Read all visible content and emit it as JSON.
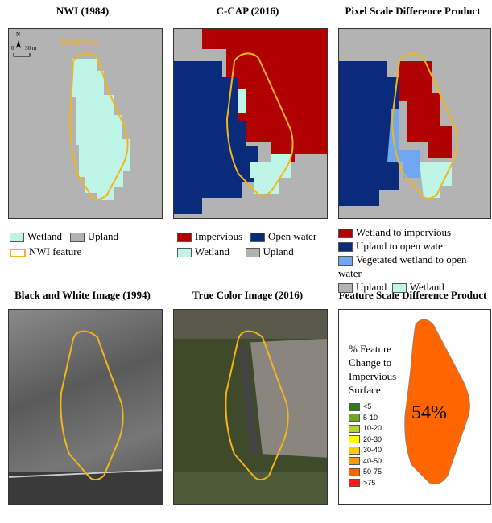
{
  "titles": [
    "NWI (1984)",
    "C-CAP (2016)",
    "Pixel Scale Difference Product",
    "Black and White Image (1994)",
    "True Color Image (2016)",
    "Feature Scale Difference Product"
  ],
  "nwi": {
    "feature_code": "PEM1Ad",
    "scale_zero": "0",
    "scale_label": "30 m",
    "north": "N",
    "legend": [
      {
        "label": "Wetland",
        "color": "#bff5e6"
      },
      {
        "label": "Upland",
        "color": "#b3b3b3"
      },
      {
        "label": "NWI feature",
        "color": "#f2b51c"
      }
    ]
  },
  "ccap": {
    "legend": [
      {
        "label": "Impervious",
        "color": "#b00000"
      },
      {
        "label": "Open water",
        "color": "#0a2a7a"
      },
      {
        "label": "Wetland",
        "color": "#bff5e6"
      },
      {
        "label": "Upland",
        "color": "#b3b3b3"
      }
    ]
  },
  "pixel_diff": {
    "legend": [
      {
        "label": "Wetland to impervious",
        "color": "#b00000"
      },
      {
        "label": "Upland to open water",
        "color": "#0a2a7a"
      },
      {
        "label": "Vegetated wetland to open water",
        "color": "#6fa8f0"
      },
      {
        "label": "Upland",
        "color": "#b3b3b3"
      },
      {
        "label": "Wetland",
        "color": "#bff5e6"
      }
    ]
  },
  "feature_diff": {
    "value_label": "54%",
    "value": 54,
    "fill": "#ff6600",
    "legend_title": "% Feature Change to Impervious Surface",
    "classes": [
      {
        "label": "<5",
        "color": "#2e7d1a"
      },
      {
        "label": "5-10",
        "color": "#6aa81e"
      },
      {
        "label": "10-20",
        "color": "#b5d62a"
      },
      {
        "label": "20-30",
        "color": "#ffff00"
      },
      {
        "label": "30-40",
        "color": "#ffcc00"
      },
      {
        "label": "40-50",
        "color": "#ff9900"
      },
      {
        "label": "50-75",
        "color": "#ff6600"
      },
      {
        "label": ">75",
        "color": "#ff1a1a"
      }
    ]
  }
}
